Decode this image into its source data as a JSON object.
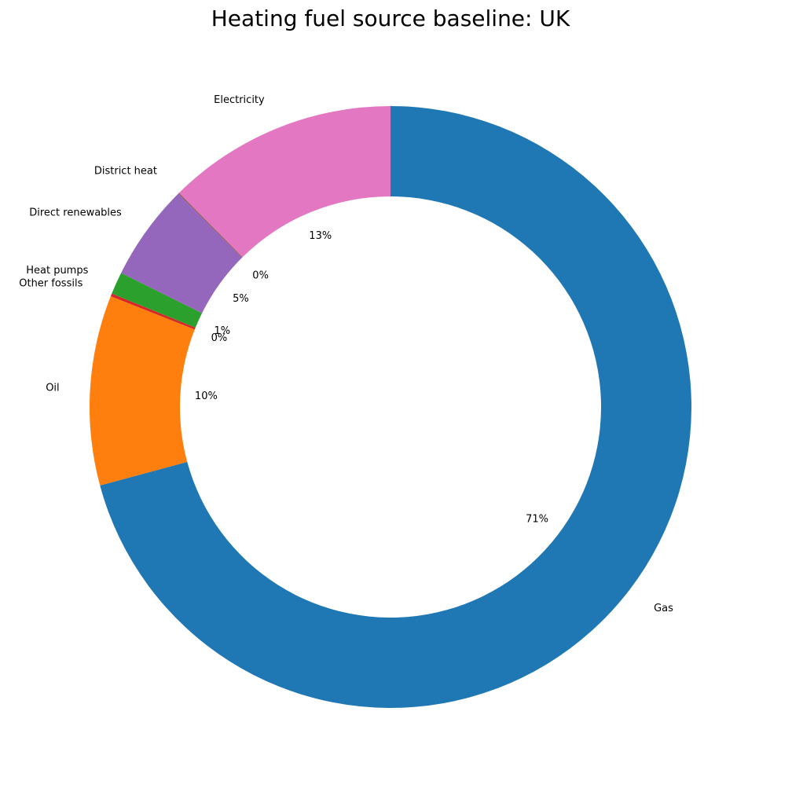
{
  "chart_data": {
    "type": "pie",
    "title": "Heating fuel source baseline: UK",
    "donut": true,
    "start_angle_deg": 90,
    "direction": "clockwise",
    "slices": [
      {
        "label": "Gas",
        "value": 70.8,
        "pct_label": "71%",
        "color": "#1f77b4"
      },
      {
        "label": "Oil",
        "value": 10.2,
        "pct_label": "10%",
        "color": "#ff7f0e"
      },
      {
        "label": "Other fossils",
        "value": 0.15,
        "pct_label": "0%",
        "color": "#d62728"
      },
      {
        "label": "Heat pumps",
        "value": 1.2,
        "pct_label": "1%",
        "color": "#2ca02c"
      },
      {
        "label": "Direct renewables",
        "value": 5.2,
        "pct_label": "5%",
        "color": "#9467bd"
      },
      {
        "label": "District heat",
        "value": 0.05,
        "pct_label": "0%",
        "color": "#8c564b"
      },
      {
        "label": "Electricity",
        "value": 12.4,
        "pct_label": "13%",
        "color": "#e377c2"
      }
    ]
  }
}
